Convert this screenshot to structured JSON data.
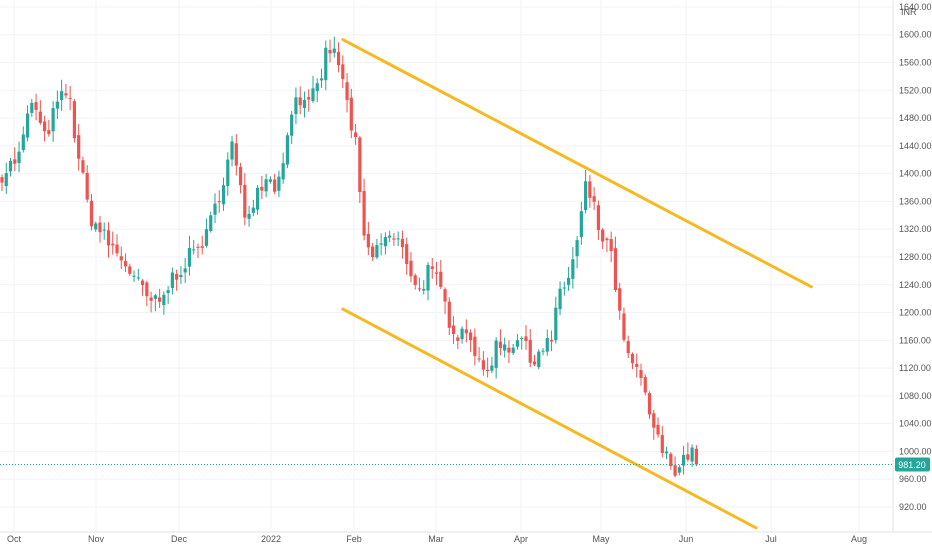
{
  "chart_data": {
    "type": "candlestick",
    "currency": "INR",
    "price_axis": {
      "ticks": [
        "920.00",
        "960.00",
        "1000.00",
        "1040.00",
        "1080.00",
        "1120.00",
        "1160.00",
        "1200.00",
        "1240.00",
        "1280.00",
        "1320.00",
        "1360.00",
        "1400.00",
        "1440.00",
        "1480.00",
        "1520.00",
        "1560.00",
        "1600.00",
        "1640.00"
      ],
      "range": [
        884,
        1650
      ]
    },
    "time_axis": {
      "labels": [
        "Oct",
        "Nov",
        "Dec",
        "2022",
        "Feb",
        "Mar",
        "Apr",
        "May",
        "Jun",
        "Jul",
        "Aug"
      ]
    },
    "last_price": {
      "value": 981.2,
      "label": "981.20"
    },
    "colors": {
      "up": "#26a69a",
      "down": "#ef5350",
      "trendline": "#f5b921",
      "last_price_badge": "#26a69a",
      "grid": "#f0f3fa",
      "axis_text": "#555555"
    },
    "grid": true,
    "trendlines": [
      {
        "name": "upper",
        "from": {
          "bar": 160,
          "price": 1593
        },
        "to": {
          "bar": 380,
          "price": 1237
        }
      },
      {
        "name": "lower",
        "from": {
          "bar": 160,
          "price": 1205
        },
        "to": {
          "bar": 354,
          "price": 890
        }
      }
    ],
    "anchors": [
      [
        0,
        1400
      ],
      [
        8,
        1425
      ],
      [
        14,
        1505
      ],
      [
        20,
        1450
      ],
      [
        26,
        1500
      ],
      [
        31,
        1520
      ],
      [
        35,
        1440
      ],
      [
        41,
        1340
      ],
      [
        50,
        1300
      ],
      [
        58,
        1270
      ],
      [
        68,
        1220
      ],
      [
        74,
        1210
      ],
      [
        80,
        1250
      ],
      [
        88,
        1280
      ],
      [
        96,
        1310
      ],
      [
        101,
        1360
      ],
      [
        108,
        1440
      ],
      [
        114,
        1340
      ],
      [
        119,
        1370
      ],
      [
        124,
        1400
      ],
      [
        128,
        1380
      ],
      [
        134,
        1450
      ],
      [
        138,
        1520
      ],
      [
        143,
        1490
      ],
      [
        149,
        1530
      ],
      [
        153,
        1585
      ],
      [
        158,
        1560
      ],
      [
        162,
        1500
      ],
      [
        166,
        1440
      ],
      [
        170,
        1300
      ],
      [
        174,
        1280
      ],
      [
        180,
        1310
      ],
      [
        186,
        1300
      ],
      [
        190,
        1275
      ],
      [
        196,
        1230
      ],
      [
        200,
        1260
      ],
      [
        205,
        1240
      ],
      [
        210,
        1190
      ],
      [
        214,
        1170
      ],
      [
        219,
        1180
      ],
      [
        224,
        1120
      ],
      [
        227,
        1110
      ],
      [
        233,
        1160
      ],
      [
        238,
        1150
      ],
      [
        243,
        1170
      ],
      [
        248,
        1130
      ],
      [
        253,
        1150
      ],
      [
        258,
        1160
      ],
      [
        262,
        1230
      ],
      [
        266,
        1250
      ],
      [
        270,
        1300
      ],
      [
        274,
        1380
      ],
      [
        277,
        1360
      ],
      [
        281,
        1310
      ],
      [
        285,
        1295
      ],
      [
        288,
        1240
      ],
      [
        292,
        1150
      ],
      [
        297,
        1120
      ],
      [
        302,
        1080
      ],
      [
        307,
        1020
      ],
      [
        312,
        990
      ],
      [
        317,
        975
      ],
      [
        320,
        990
      ],
      [
        323,
        1000
      ],
      [
        326,
        982
      ]
    ],
    "total_bars": 434
  }
}
